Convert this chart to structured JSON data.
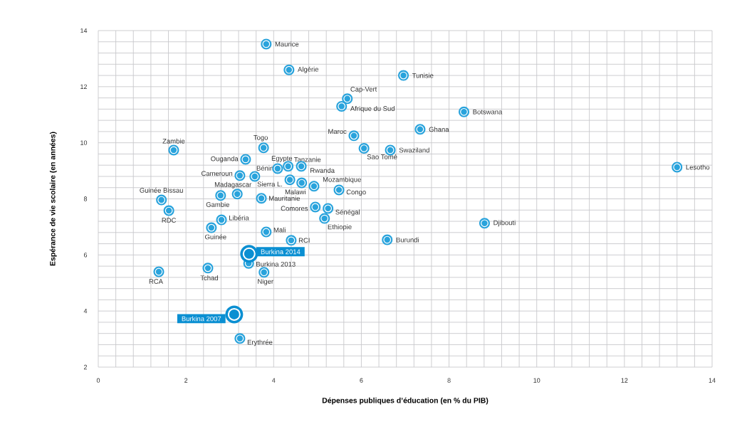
{
  "chart_data": {
    "type": "scatter",
    "xlabel": "Dépenses publiques d’éducation (en % du PIB)",
    "ylabel": "Espérance de vie scolaire (en années)",
    "xlim": [
      0,
      14
    ],
    "ylim": [
      2,
      14
    ],
    "xticks": [
      0,
      2,
      4,
      6,
      8,
      10,
      12,
      14
    ],
    "yticks": [
      2,
      4,
      6,
      8,
      10,
      12,
      14
    ],
    "grid": true,
    "marker": "circle",
    "series": [
      {
        "color": "#29a3dc",
        "x": [
          3.83,
          4.35,
          6.96,
          5.68,
          5.55,
          8.34,
          7.34,
          5.83,
          6.06,
          6.66,
          1.72,
          3.77,
          3.36,
          3.23,
          3.57,
          4.09,
          4.33,
          4.63,
          4.37,
          4.64,
          4.92,
          5.49,
          1.44,
          1.61,
          2.79,
          3.17,
          3.72,
          2.81,
          2.58,
          3.83,
          4.4,
          4.95,
          5.24,
          5.16,
          3.43,
          3.78,
          1.38,
          2.5,
          3.23,
          13.2,
          8.81,
          6.59
        ],
        "values": [
          13.52,
          12.6,
          12.4,
          11.57,
          11.3,
          11.1,
          10.48,
          10.25,
          9.8,
          9.74,
          9.74,
          9.82,
          9.41,
          8.83,
          8.8,
          9.08,
          9.16,
          9.16,
          8.68,
          8.57,
          8.45,
          8.32,
          7.96,
          7.58,
          8.12,
          8.17,
          8.02,
          7.25,
          6.97,
          6.82,
          6.52,
          7.71,
          7.66,
          7.3,
          5.7,
          5.38,
          5.4,
          5.53,
          3.02,
          9.13,
          7.13,
          6.54
        ],
        "value_labels": [
          "Maurice",
          "Algérie",
          "Tunisie",
          "Cap-Vert",
          "Afrique du Sud",
          "Botswana",
          "Ghana",
          "Maroc",
          "Sao Tomé",
          "Swaziland",
          "Zambie",
          "Togo",
          "Ouganda",
          "Cameroun",
          "Bénin",
          "Egypte",
          "Tanzanie",
          "Rwanda",
          "Sierra L.",
          "Malawi",
          "Mozambique",
          "Congo",
          "Guinée Bissau",
          "RDC",
          "Gambie",
          "Madagascar",
          "Mauritanie",
          "Libéria",
          "Guinée",
          "Mali",
          "RCI",
          "Comores",
          "Sénégal",
          "Ethiopie",
          "Burkina 2013",
          "Niger",
          "RCA",
          "Tchad",
          "Erythrée",
          "Lesotho",
          "Djibouti",
          "Burundi"
        ]
      },
      {
        "color": "#0a8fd2",
        "x": [
          3.44,
          3.1
        ],
        "values": [
          6.04,
          3.88
        ],
        "value_labels": [
          "Burkina 2014",
          "Burkina 2007"
        ]
      }
    ]
  }
}
